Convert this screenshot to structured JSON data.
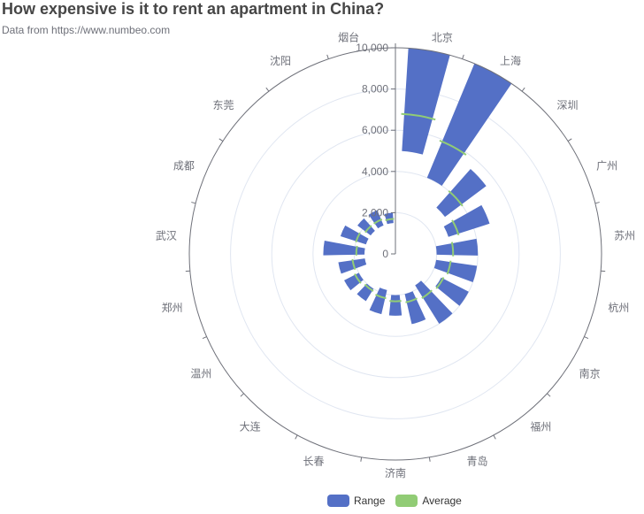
{
  "title": "How expensive is it to rent an apartment in China?",
  "subtitle": "Data from https://www.numbeo.com",
  "colors": {
    "range": "#5470c6",
    "average": "#91cc75",
    "axis": "#6e7079",
    "grid": "#e0e6f1"
  },
  "legend": [
    {
      "name": "Range",
      "color": "#5470c6"
    },
    {
      "name": "Average",
      "color": "#91cc75"
    }
  ],
  "chart_data": {
    "type": "polar-stacked-bar",
    "radius_ticks": [
      "0",
      "2,000",
      "4,000",
      "6,000",
      "8,000",
      "10,000"
    ],
    "rlim": [
      0,
      10000
    ],
    "categories": [
      "北京",
      "上海",
      "深圳",
      "广州",
      "苏州",
      "杭州",
      "南京",
      "福州",
      "青岛",
      "济南",
      "长春",
      "大连",
      "温州",
      "郑州",
      "武汉",
      "成都",
      "东莞",
      "沈阳",
      "烟台"
    ],
    "ranges": [
      [
        5000,
        10000
      ],
      [
        4000,
        10000
      ],
      [
        3000,
        5500
      ],
      [
        2700,
        4800
      ],
      [
        2000,
        4000
      ],
      [
        2000,
        4000
      ],
      [
        2500,
        4000
      ],
      [
        1800,
        4000
      ],
      [
        2000,
        3500
      ],
      [
        2000,
        3000
      ],
      [
        1800,
        3000
      ],
      [
        2000,
        2700
      ],
      [
        2000,
        2800
      ],
      [
        1500,
        2800
      ],
      [
        1500,
        3500
      ],
      [
        1500,
        2800
      ],
      [
        1500,
        2300
      ],
      [
        1500,
        2300
      ],
      [
        1500,
        2000
      ]
    ],
    "averages": [
      6800,
      5900,
      4000,
      3200,
      2800,
      2700,
      2600,
      2500,
      2400,
      2300,
      2200,
      2100,
      2200,
      2100,
      1900,
      2000,
      1800,
      1800,
      1700
    ],
    "series": [
      {
        "name": "Range"
      },
      {
        "name": "Average"
      }
    ],
    "legend_position": "bottom-center",
    "grid": true
  }
}
